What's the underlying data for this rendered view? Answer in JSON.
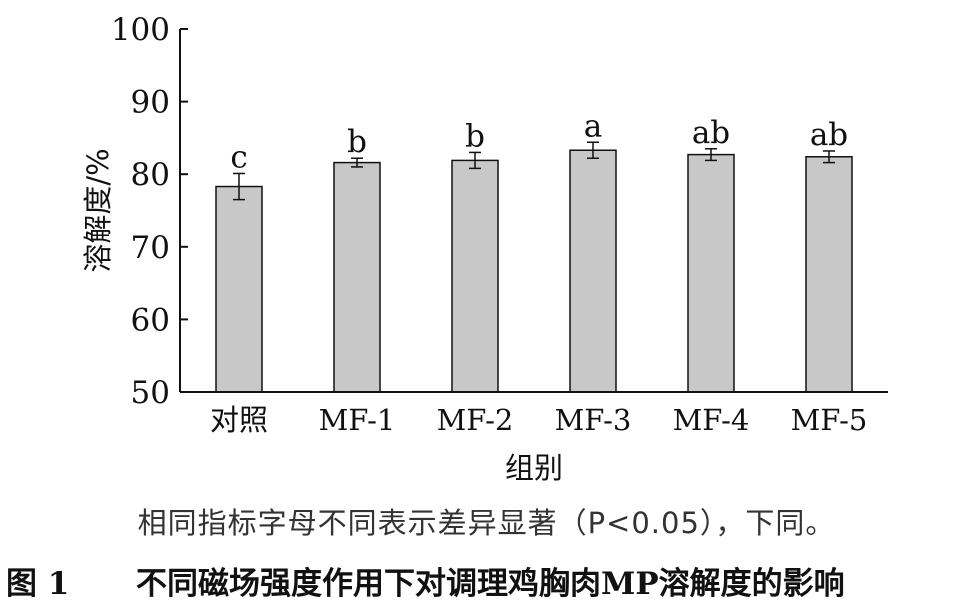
{
  "chart_data": {
    "type": "bar",
    "categories": [
      "对照",
      "MF-1",
      "MF-2",
      "MF-3",
      "MF-4",
      "MF-5"
    ],
    "values": [
      78.3,
      81.6,
      81.9,
      83.3,
      82.7,
      82.4
    ],
    "errors": [
      1.8,
      0.6,
      1.1,
      1.1,
      0.8,
      0.8
    ],
    "letters": [
      "c",
      "b",
      "b",
      "a",
      "ab",
      "ab"
    ],
    "xlabel": "组别",
    "ylabel": "溶解度/%",
    "ylim": [
      50,
      100
    ],
    "yticks": [
      50,
      60,
      70,
      80,
      90,
      100
    ],
    "bar_color": "#c8c8c8",
    "grid": false
  },
  "note": "相同指标字母不同表示差异显著（P<0.05），下同。",
  "caption": {
    "number": "图 1",
    "text": "不同磁场强度作用下对调理鸡胸肉MP溶解度的影响"
  }
}
